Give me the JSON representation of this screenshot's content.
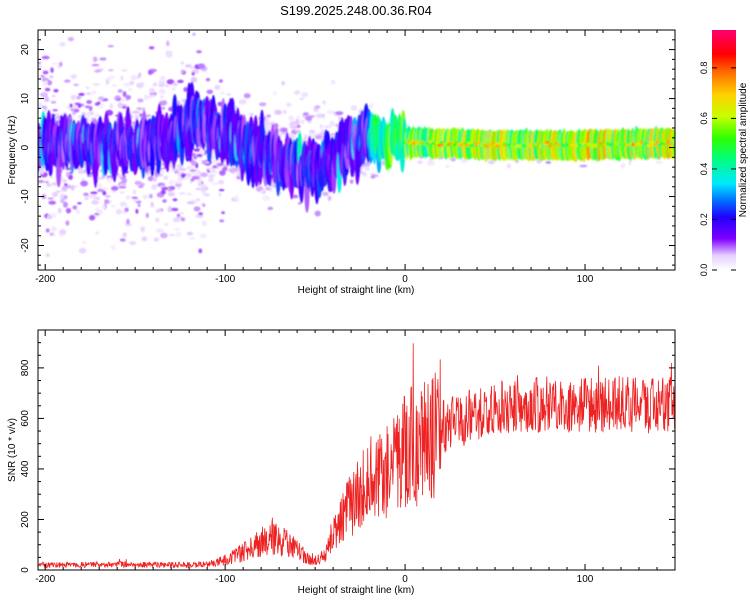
{
  "figure_title": "S199.2025.248.00.36.R04",
  "chart_data": [
    {
      "type": "heatmap",
      "xlabel": "Height of straight line (km)",
      "ylabel": "Frequency (Hz)",
      "xlim": [
        -204,
        150
      ],
      "ylim": [
        -25,
        24
      ],
      "x_ticks": [
        -200,
        -100,
        0,
        100
      ],
      "x_tick_labels": [
        "-200",
        "-100",
        "0",
        "100"
      ],
      "y_ticks": [
        -20,
        -10,
        0,
        10,
        20
      ],
      "y_tick_labels": [
        "-20",
        "-10",
        "0",
        "10",
        "20"
      ],
      "colorbar": {
        "label": "Normalized spectral amplitude",
        "range": [
          0,
          0.95
        ],
        "ticks": [
          0,
          0.2,
          0.4,
          0.6,
          0.8
        ],
        "tick_labels": [
          "0.0",
          "0.2",
          "0.4",
          "0.6",
          "0.8"
        ]
      },
      "ridge": [
        {
          "x": -200,
          "f": 1,
          "amp": 0.3
        },
        {
          "x": -150,
          "f": 0,
          "amp": 0.3
        },
        {
          "x": -110,
          "f": 5,
          "amp": 0.35
        },
        {
          "x": -90,
          "f": 0,
          "amp": 0.3
        },
        {
          "x": -65,
          "f": -4,
          "amp": 0.3
        },
        {
          "x": -50,
          "f": -4,
          "amp": 0.3
        },
        {
          "x": -40,
          "f": -3,
          "amp": 0.3
        },
        {
          "x": -20,
          "f": 3,
          "amp": 0.5
        },
        {
          "x": -10,
          "f": 1,
          "amp": 0.6
        },
        {
          "x": 0,
          "f": 1,
          "amp": 0.7
        },
        {
          "x": 50,
          "f": 0.5,
          "amp": 0.75
        },
        {
          "x": 100,
          "f": 0.5,
          "amp": 0.8
        },
        {
          "x": 150,
          "f": 1,
          "amp": 0.8
        }
      ]
    },
    {
      "type": "line",
      "xlabel": "Height of straight line (km)",
      "ylabel": "SNR (10 * v/v)",
      "xlim": [
        -204,
        150
      ],
      "ylim": [
        0,
        950
      ],
      "x_ticks": [
        -200,
        -100,
        0,
        100
      ],
      "x_tick_labels": [
        "-200",
        "-100",
        "0",
        "100"
      ],
      "y_ticks": [
        0,
        200,
        400,
        600,
        800
      ],
      "y_tick_labels": [
        "0",
        "200",
        "400",
        "600",
        "800"
      ],
      "series": [
        {
          "name": "SNR",
          "color": "#ee2222",
          "x": [
            -204,
            -180,
            -160,
            -140,
            -120,
            -110,
            -100,
            -90,
            -80,
            -75,
            -70,
            -65,
            -60,
            -55,
            -50,
            -45,
            -40,
            -35,
            -30,
            -25,
            -20,
            -15,
            -10,
            -5,
            0,
            10,
            20,
            30,
            40,
            50,
            60,
            70,
            80,
            90,
            100,
            110,
            120,
            130,
            140,
            150
          ],
          "values": [
            20,
            20,
            22,
            20,
            20,
            22,
            40,
            70,
            110,
            140,
            120,
            110,
            80,
            50,
            40,
            50,
            140,
            200,
            260,
            310,
            330,
            360,
            380,
            420,
            470,
            520,
            560,
            590,
            620,
            640,
            650,
            650,
            660,
            650,
            660,
            650,
            660,
            650,
            650,
            660
          ]
        }
      ]
    }
  ],
  "colors": {
    "line": "#ee2222",
    "frame": "#000000",
    "colormap": [
      "#ffffff",
      "#8000ff",
      "#2a00ff",
      "#0060ff",
      "#00e6ff",
      "#00ff80",
      "#40ff00",
      "#d0ff00",
      "#ffd000",
      "#ff7000",
      "#ff0000",
      "#ff0070"
    ]
  }
}
